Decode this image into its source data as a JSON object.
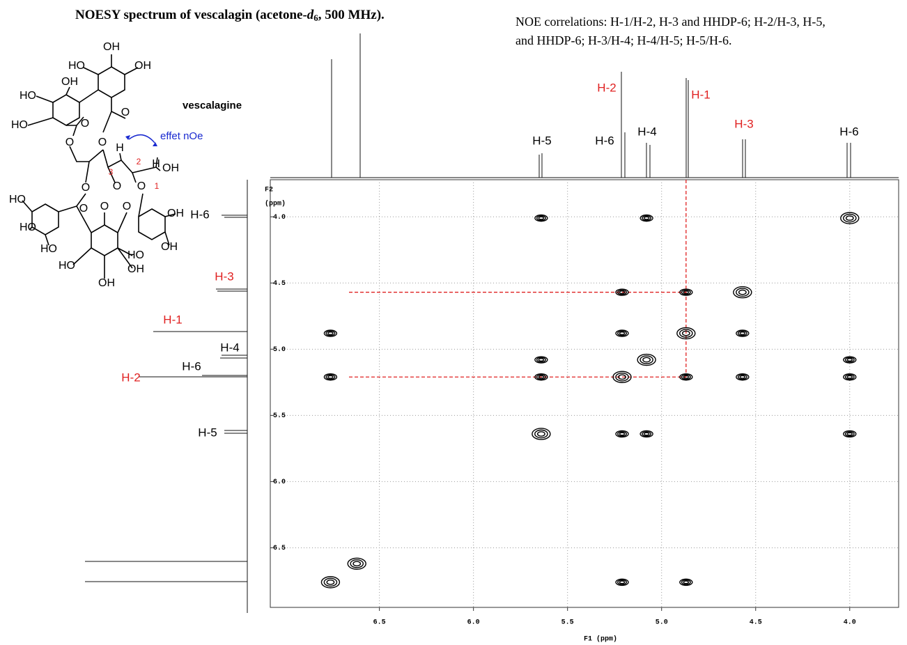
{
  "chart_data": {
    "type": "scatter",
    "title": [
      "NOESY spectrum of vescalagin  (acetone-",
      "d",
      "6",
      ", 500 MHz)."
    ],
    "note": [
      "NOE correlations:  H-1/H-2, H-3 and HHDP-6; H-2/H-3, H-5,",
      "and HHDP-6; H-3/H-4; H-4/H-5; H-5/H-6."
    ],
    "x_label": "F1 (ppm)",
    "y_label": [
      "F2",
      "(ppm)"
    ],
    "xlim": [
      7.08,
      3.74
    ],
    "ylim": [
      3.72,
      6.95
    ],
    "xticks": [
      6.5,
      {
        "value": 6,
        "label": "6.0"
      },
      5.5,
      {
        "value": 5,
        "label": "5.0"
      },
      4.5,
      {
        "value": 4,
        "label": "4.0"
      }
    ],
    "yticks": [
      {
        "value": 4,
        "label": "4.0"
      },
      4.5,
      {
        "value": 5,
        "label": "5.0"
      },
      5.5,
      {
        "value": 6,
        "label": "6.0"
      },
      6.5
    ],
    "grid": true,
    "color": "#000000",
    "guide_color": "#e02020",
    "x": [
      5.64,
      5.08,
      4.0,
      5.21,
      4.87,
      4.57,
      6.76,
      5.21,
      4.87,
      4.57,
      5.64,
      5.08,
      4.0,
      6.76,
      5.64,
      5.21,
      4.87,
      4.57,
      4.0,
      5.64,
      5.21,
      5.08,
      4.0,
      6.62,
      6.76,
      5.21,
      4.87
    ],
    "y": [
      4.01,
      4.01,
      4.01,
      4.57,
      4.57,
      4.57,
      4.88,
      4.88,
      4.88,
      4.88,
      5.08,
      5.08,
      5.08,
      5.21,
      5.21,
      5.21,
      5.21,
      5.21,
      5.21,
      5.64,
      5.64,
      5.64,
      5.64,
      6.62,
      6.76,
      6.76,
      6.76
    ],
    "top_labels": [
      "H-5",
      "H-6",
      "H-4",
      "H-2",
      "H-1",
      "H-3",
      "H-6"
    ],
    "top_label_colors": [
      "#000000",
      "#000000",
      "#000000",
      "#e02020",
      "#e02020",
      "#e02020",
      "#000000"
    ],
    "left_labels": [
      "H-6",
      "H-3",
      "H-1",
      "H-4",
      "H-6",
      "H-2",
      "H-5"
    ],
    "left_label_colors": [
      "#000000",
      "#e02020",
      "#e02020",
      "#000000",
      "#000000",
      "#e02020",
      "#000000"
    ]
  },
  "molecule": {
    "name": "vescalagine",
    "note": "effet nOe",
    "atoms": [
      "OH",
      "HO",
      "OH",
      "OH",
      "HO",
      "HO",
      "O",
      "O",
      "O",
      "O",
      "H",
      "H",
      "OH",
      "O",
      "O",
      "O",
      "O",
      "O",
      "O",
      "HO",
      "HO",
      "HO",
      "OH",
      "OH",
      "HO",
      "HO",
      "OH",
      "OH"
    ],
    "numbers": [
      "1",
      "2",
      "3"
    ]
  }
}
